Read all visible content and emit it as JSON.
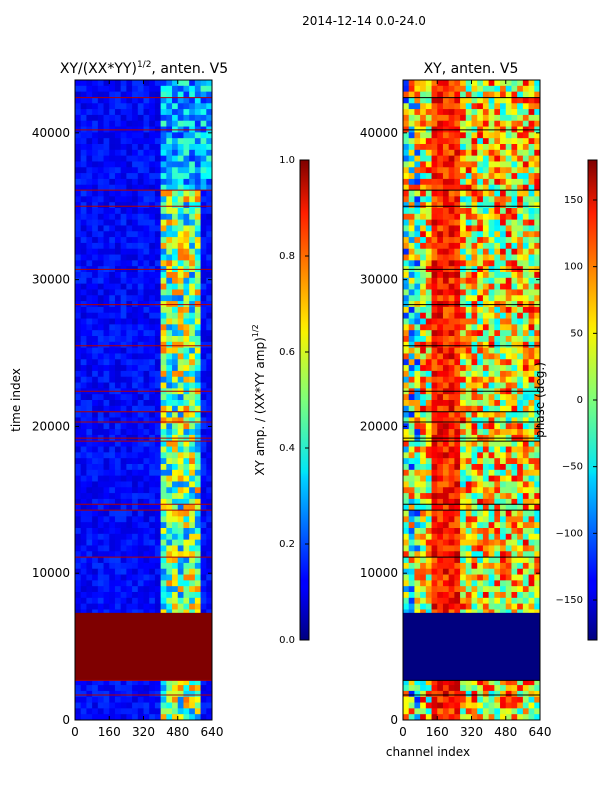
{
  "figure": {
    "suptitle": "2014-12-14 0.0-24.0"
  },
  "chart_data": [
    {
      "type": "heatmap",
      "title_main": "XY/(XX*YY)",
      "title_exp": "1/2",
      "title_tail": ", anten. V5",
      "xlabel": "",
      "ylabel": "time index",
      "xlim": [
        0,
        640
      ],
      "ylim": [
        0,
        43600
      ],
      "xticks": [
        0,
        160,
        320,
        480,
        640
      ],
      "yticks": [
        0,
        10000,
        20000,
        30000,
        40000
      ],
      "colorbar": {
        "label_main": "XY amp. / (XX*YY amp)",
        "label_exp": "1/2",
        "range": [
          0,
          1
        ],
        "ticks": [
          "0.0",
          "0.2",
          "0.4",
          "0.6",
          "0.8",
          "1.0"
        ]
      },
      "saturated_block": [
        2700,
        7300
      ],
      "flag_lines": [
        1700,
        2700,
        11100,
        14300,
        14700,
        19000,
        19200,
        20300,
        21000,
        22400,
        25500,
        28300,
        30700,
        35000,
        36100,
        40200,
        42400
      ]
    },
    {
      "type": "heatmap",
      "title_main": "XY, anten. V5",
      "xlabel": "channel index",
      "ylabel": "",
      "xlim": [
        0,
        640
      ],
      "ylim": [
        0,
        43600
      ],
      "xticks": [
        0,
        160,
        320,
        480,
        640
      ],
      "yticks": [
        0,
        10000,
        20000,
        30000,
        40000
      ],
      "colorbar": {
        "label": "phase (deg.)",
        "range": [
          -180,
          180
        ],
        "ticks": [
          "−150",
          "−100",
          "−50",
          "0",
          "50",
          "100",
          "150"
        ]
      },
      "flagged_block": [
        2700,
        7300
      ],
      "flag_lines": [
        1700,
        2700,
        11100,
        14300,
        14700,
        19000,
        19200,
        20300,
        21000,
        22400,
        25500,
        28300,
        30700,
        35000,
        36100,
        40200,
        42400
      ]
    }
  ]
}
